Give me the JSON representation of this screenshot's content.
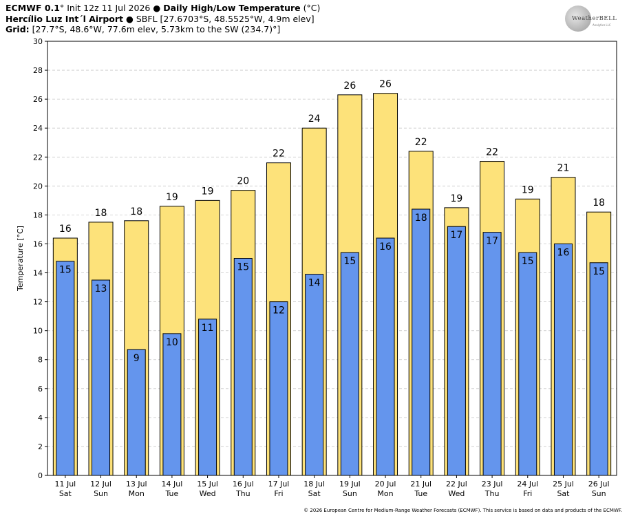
{
  "header": {
    "model_bold": "ECMWF 0.1",
    "model_rest": "° Init 12z 11 Jul 2026 ",
    "bullet": "●",
    "title_bold": "Daily High/Low Temperature",
    "title_unit": " (°C)",
    "station_bold": "Hercílio Luz Int´l Airport",
    "station_rest": " ● SBFL [27.6703°S, 48.5525°W, 4.9m elev]",
    "grid_bold": "Grid:",
    "grid_rest": " [27.7°S, 48.6°W, 77.6m elev, 5.73km to the SW (234.7)°]"
  },
  "logo": {
    "text": "WeatherBELL",
    "tag": "Analytics LLC"
  },
  "footer": "© 2026 European Centre for Medium-Range Weather Forecasts (ECMWF). This service is based on data and products of the ECMWF.",
  "colors": {
    "high": "#fde27a",
    "low": "#6495ed",
    "bar_outline": "#000000",
    "grid": "#c8c8c8"
  },
  "chart_data": {
    "type": "bar",
    "ylabel": "Temperature [°C]",
    "ylim": [
      0,
      30
    ],
    "yticks": [
      0,
      2,
      4,
      6,
      8,
      10,
      12,
      14,
      16,
      18,
      20,
      22,
      24,
      26,
      28,
      30
    ],
    "grid": true,
    "categories": [
      "11 Jul",
      "12 Jul",
      "13 Jul",
      "14 Jul",
      "15 Jul",
      "16 Jul",
      "17 Jul",
      "18 Jul",
      "19 Jul",
      "20 Jul",
      "21 Jul",
      "22 Jul",
      "23 Jul",
      "24 Jul",
      "25 Jul",
      "26 Jul"
    ],
    "weekdays": [
      "Sat",
      "Sun",
      "Mon",
      "Tue",
      "Wed",
      "Thu",
      "Fri",
      "Sat",
      "Sun",
      "Mon",
      "Tue",
      "Wed",
      "Thu",
      "Fri",
      "Sat",
      "Sun"
    ],
    "series": [
      {
        "key": "high",
        "values": [
          16.4,
          17.5,
          17.6,
          18.6,
          19.0,
          19.7,
          21.6,
          24.0,
          26.3,
          26.4,
          22.4,
          18.5,
          21.7,
          19.1,
          20.6,
          18.2
        ],
        "labels": [
          "16",
          "18",
          "18",
          "19",
          "19",
          "20",
          "22",
          "24",
          "26",
          "26",
          "22",
          "19",
          "22",
          "19",
          "21",
          "18"
        ]
      },
      {
        "key": "low",
        "values": [
          14.8,
          13.5,
          8.7,
          9.8,
          10.8,
          15.0,
          12.0,
          13.9,
          15.4,
          16.4,
          18.4,
          17.2,
          16.8,
          15.4,
          16.0,
          14.7
        ],
        "labels": [
          "15",
          "13",
          "9",
          "10",
          "11",
          "15",
          "12",
          "14",
          "15",
          "16",
          "18",
          "17",
          "17",
          "15",
          "16",
          "15"
        ]
      }
    ]
  }
}
